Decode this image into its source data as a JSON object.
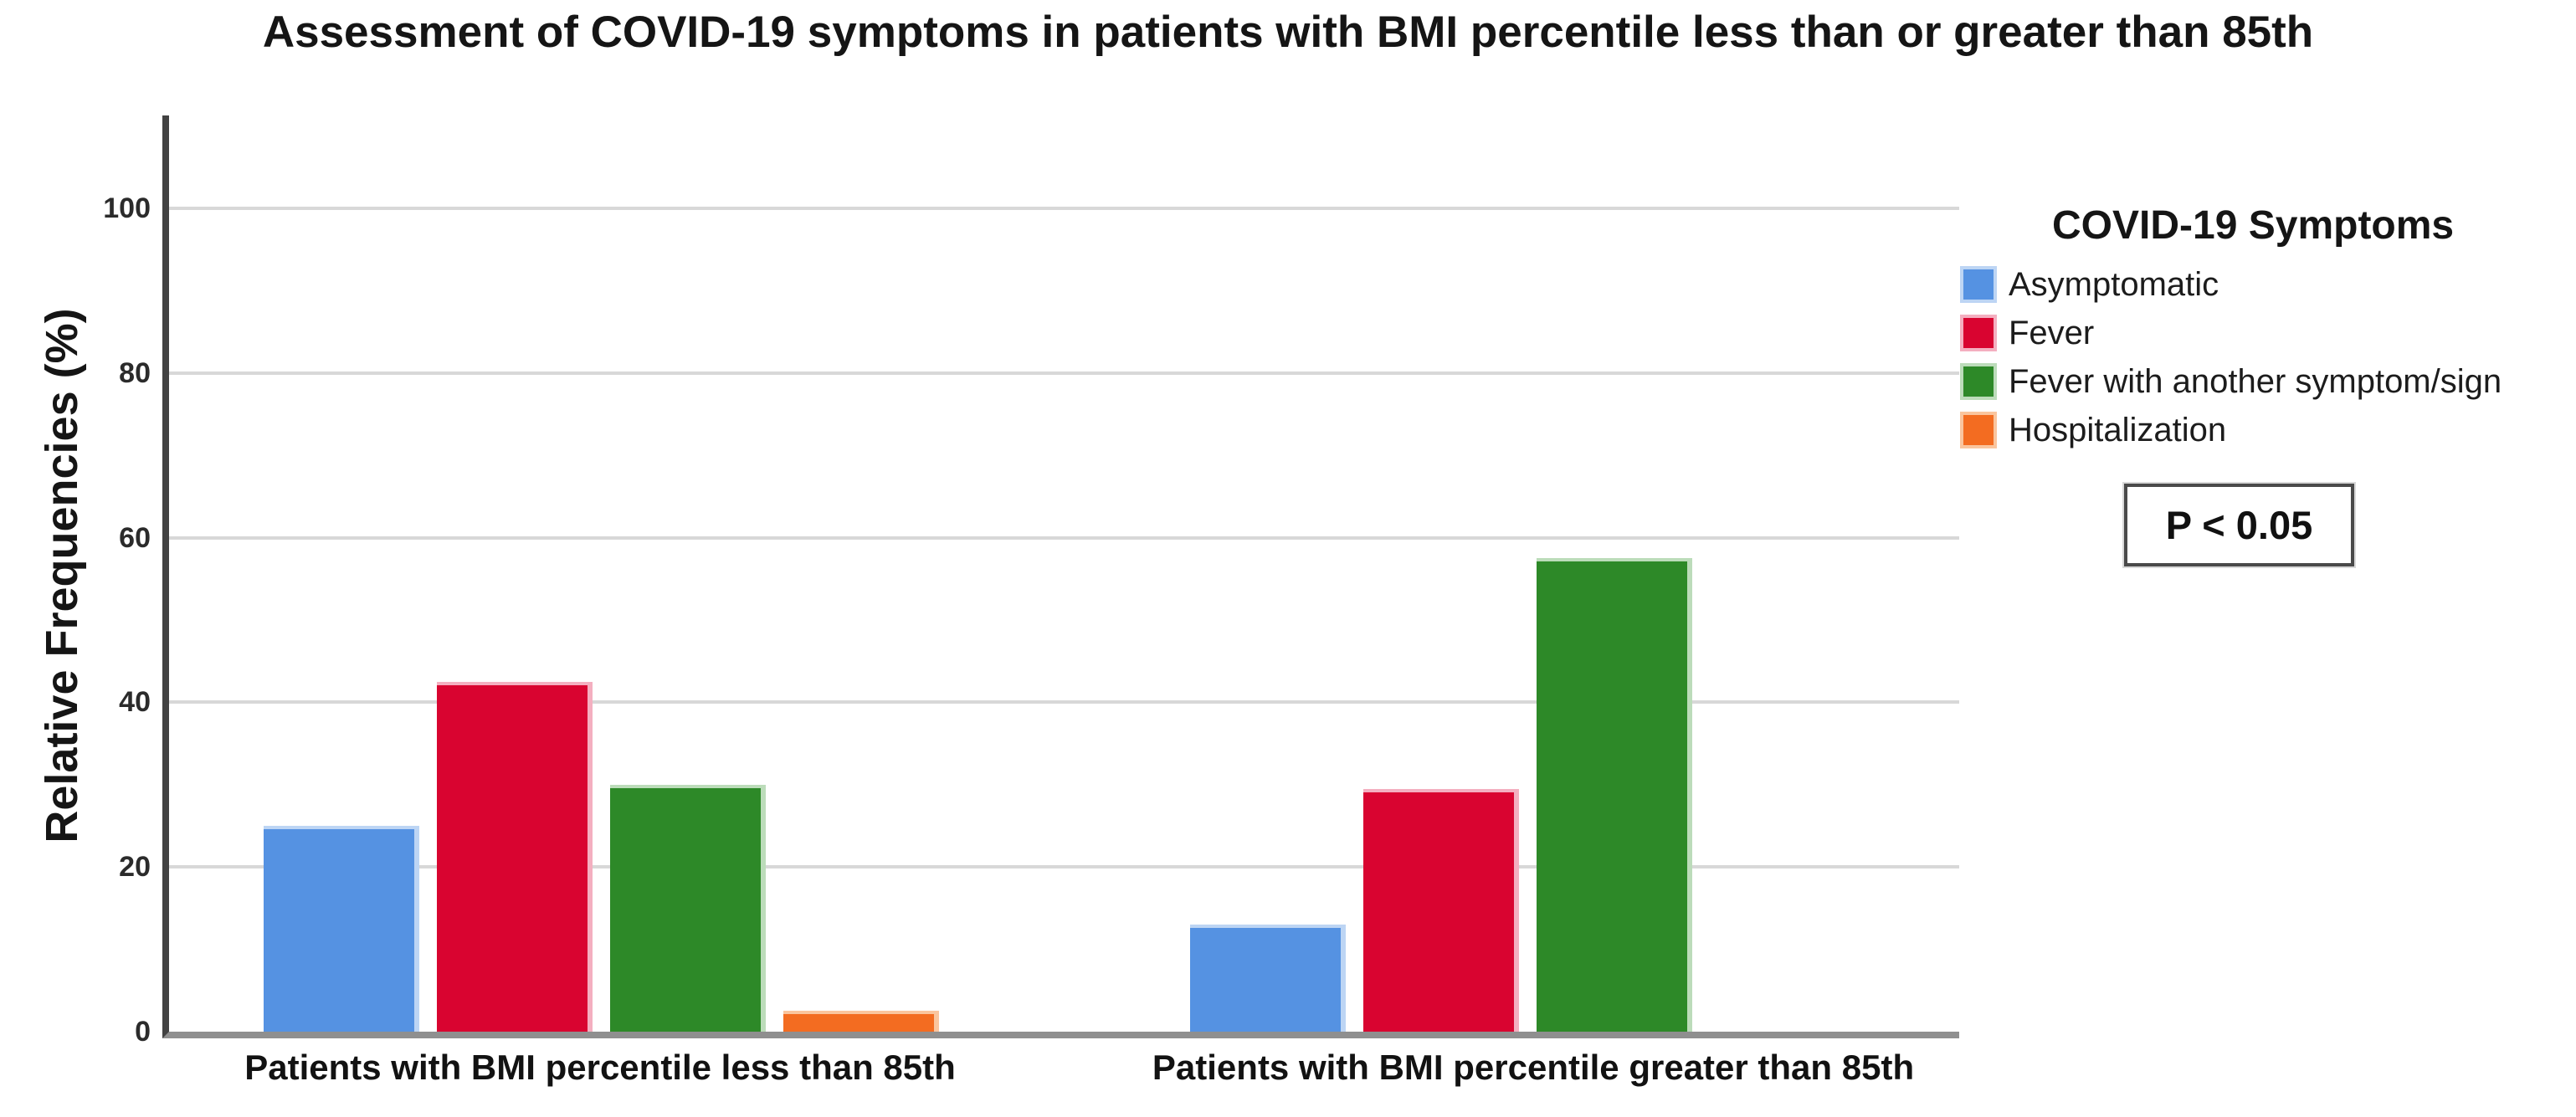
{
  "title": "Assessment of COVID-19 symptoms in patients with BMI percentile less than or greater than 85th",
  "y_axis": {
    "label": "Relative Frequencies (%)",
    "ticks": [
      0,
      20,
      40,
      60,
      80,
      100
    ]
  },
  "legend": {
    "title": "COVID-19 Symptoms"
  },
  "annotation": {
    "p_value": "P < 0.05"
  },
  "colors": {
    "axis_left": "#424242",
    "axis_bottom": "#8f8f8f",
    "gridline": "#d8d8d8"
  },
  "chart_data": {
    "type": "bar",
    "title": "Assessment of COVID-19 symptoms in patients with BMI percentile less than or greater than 85th",
    "xlabel": "",
    "ylabel": "Relative Frequencies (%)",
    "ylim": [
      0,
      110
    ],
    "grid": true,
    "legend_position": "right",
    "categories": [
      "Patients with BMI percentile less than 85th",
      "Patients with BMI percentile greater than 85th"
    ],
    "series": [
      {
        "name": "Asymptomatic",
        "color": "#5592E2",
        "edge_color": "#bdd5f4",
        "values": [
          25,
          13
        ]
      },
      {
        "name": "Fever",
        "color": "#D90430",
        "edge_color": "#f4afc0",
        "values": [
          42.5,
          29.5
        ]
      },
      {
        "name": "Fever with another symptom/sign",
        "color": "#2D8928",
        "edge_color": "#bcdcba",
        "values": [
          30,
          57.5
        ]
      },
      {
        "name": "Hospitalization",
        "color": "#F36C21",
        "edge_color": "#fac59e",
        "values": [
          2.5,
          0
        ]
      }
    ]
  }
}
